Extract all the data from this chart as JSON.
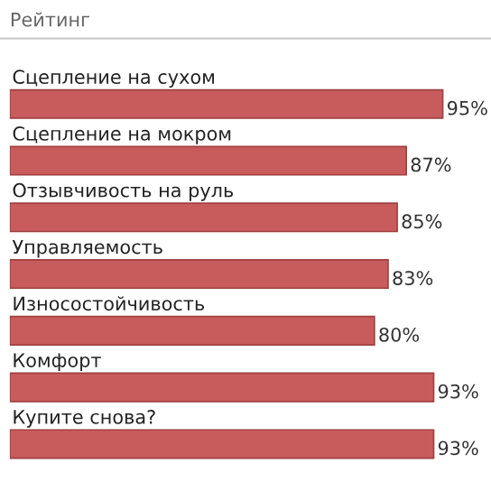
{
  "chart_data": {
    "type": "bar",
    "orientation": "horizontal",
    "title": "Рейтинг",
    "categories": [
      "Сцепление на сухом",
      "Сцепление на мокром",
      "Отзывчивость на руль",
      "Управляемость",
      "Износостойчивость",
      "Комфорт",
      "Купите снова?"
    ],
    "values": [
      95,
      87,
      85,
      83,
      80,
      93,
      93
    ],
    "value_labels": [
      "95%",
      "87%",
      "85%",
      "83%",
      "80%",
      "93%",
      "93%"
    ],
    "color": "#c85c5c"
  }
}
